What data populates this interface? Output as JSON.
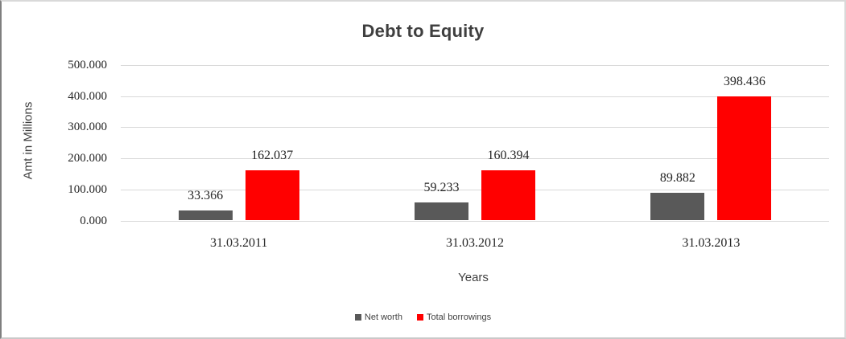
{
  "chart_data": {
    "type": "bar",
    "title": "Debt to Equity",
    "xlabel": "Years",
    "ylabel": "Amt in Millions",
    "categories": [
      "31.03.2011",
      "31.03.2012",
      "31.03.2013"
    ],
    "series": [
      {
        "name": "Net worth",
        "color": "#595959",
        "values": [
          33.366,
          59.233,
          89.882
        ],
        "labels": [
          "33.366",
          "59.233",
          "89.882"
        ]
      },
      {
        "name": "Total borrowings",
        "color": "#ff0000",
        "values": [
          162.037,
          160.394,
          398.436
        ],
        "labels": [
          "162.037",
          "160.394",
          "398.436"
        ]
      }
    ],
    "ylim": [
      0,
      500
    ],
    "y_ticks": [
      0,
      100,
      200,
      300,
      400,
      500
    ],
    "y_tick_labels": [
      "0.000",
      "100.000",
      "200.000",
      "300.000",
      "400.000",
      "500.000"
    ],
    "grid": true,
    "legend_position": "bottom"
  },
  "colors": {
    "gridline": "#d9d9d9",
    "title_text": "#3f3f3f",
    "number_text": "#262626",
    "net_worth": "#595959",
    "total_borrowings": "#ff0000"
  }
}
